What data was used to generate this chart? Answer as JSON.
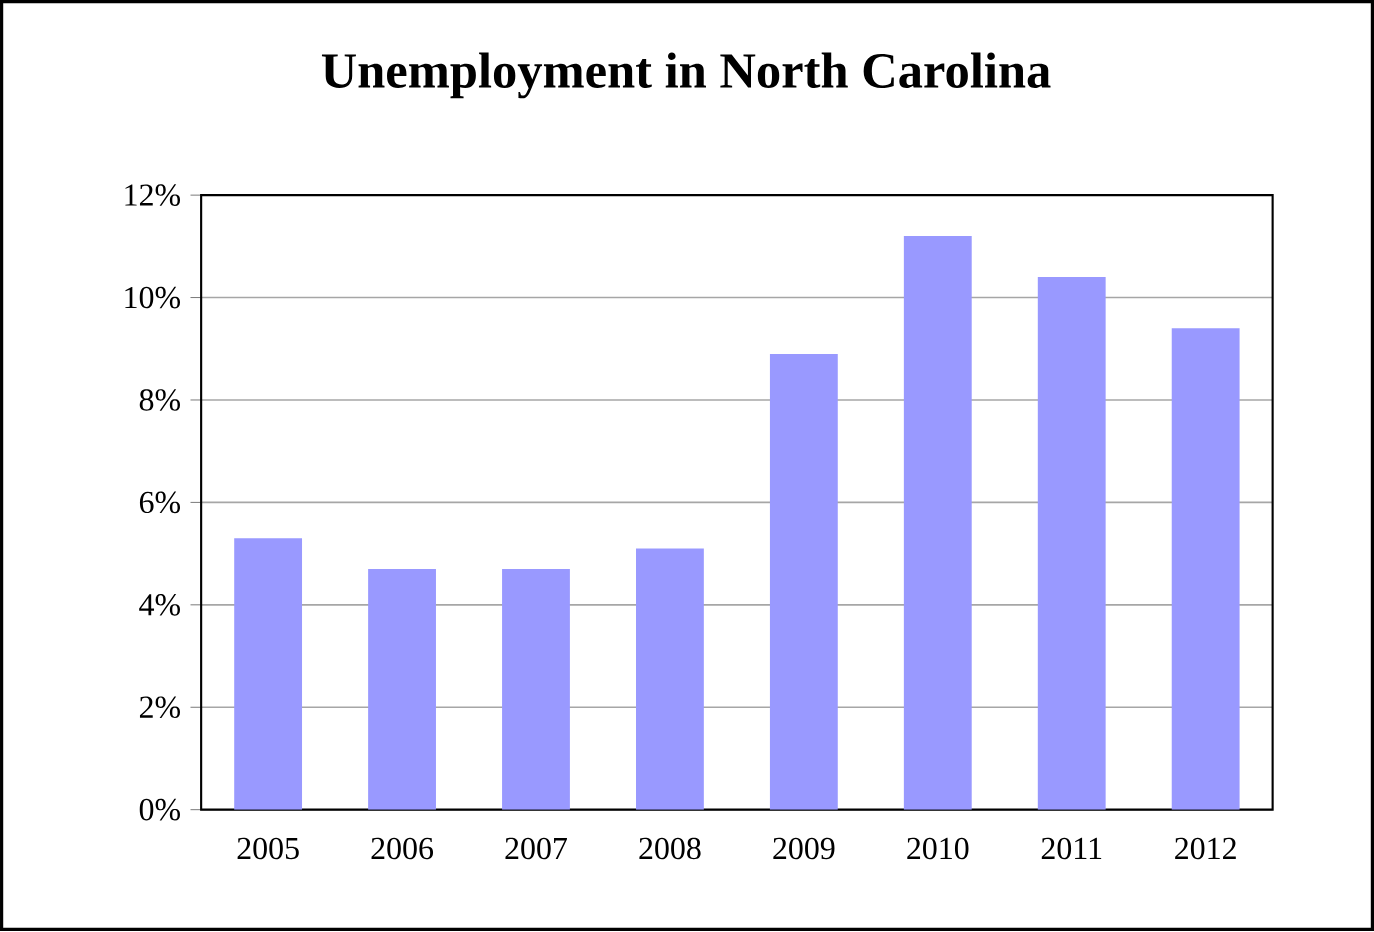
{
  "chart_data": {
    "type": "bar",
    "title": "Unemployment in North Carolina",
    "categories": [
      "2005",
      "2006",
      "2007",
      "2008",
      "2009",
      "2010",
      "2011",
      "2012"
    ],
    "values": [
      5.3,
      4.7,
      4.7,
      5.1,
      8.9,
      11.2,
      10.4,
      9.4
    ],
    "color": "#9999ff",
    "ylim": [
      0,
      12
    ],
    "yticks": [
      {
        "value": 0,
        "label": "0%"
      },
      {
        "value": 2,
        "label": "2%"
      },
      {
        "value": 4,
        "label": "4%"
      },
      {
        "value": 6,
        "label": "6%"
      },
      {
        "value": 8,
        "label": "8%"
      },
      {
        "value": 10,
        "label": "10%"
      },
      {
        "value": 12,
        "label": "12%"
      }
    ],
    "grid": "y"
  }
}
